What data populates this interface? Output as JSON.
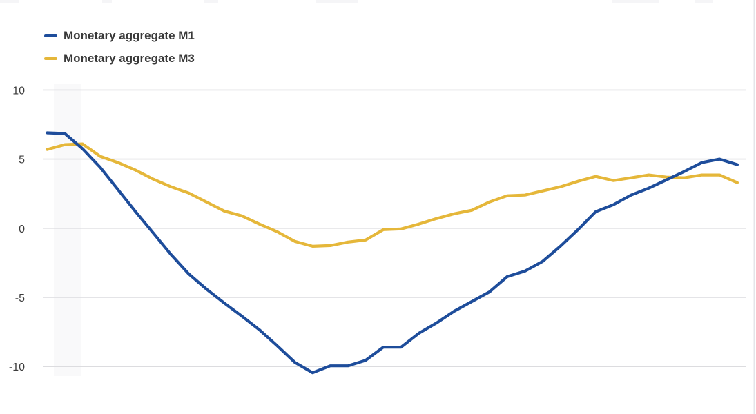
{
  "legend": {
    "items": [
      {
        "label": "Monetary aggregate M1",
        "color": "#1e4d9b"
      },
      {
        "label": "Monetary aggregate M3",
        "color": "#e5b73a"
      }
    ]
  },
  "chart_data": {
    "type": "line",
    "title": "",
    "xlabel": "",
    "ylabel": "",
    "grid": "horizontal",
    "legend_position": "top-left",
    "gridline_color": "#dcdcdf",
    "background_color": "#ffffff",
    "y_axis": {
      "ticks": [
        10,
        5,
        0,
        -5,
        -10
      ],
      "labels": [
        "10",
        "5",
        "0",
        "-5",
        "-10"
      ],
      "range": [
        -12,
        11.5
      ]
    },
    "x_axis": {
      "labels_visible": false
    },
    "series": [
      {
        "name": "Monetary aggregate M1",
        "color": "#1e4d9b",
        "values": [
          6.9,
          6.85,
          5.75,
          4.4,
          2.8,
          1.2,
          -0.35,
          -1.9,
          -3.3,
          -4.4,
          -5.4,
          -6.35,
          -7.35,
          -8.5,
          -9.7,
          -10.45,
          -9.95,
          -9.95,
          -9.55,
          -8.6,
          -8.6,
          -7.6,
          -6.85,
          -6.0,
          -5.3,
          -4.6,
          -3.5,
          -3.1,
          -2.4,
          -1.3,
          -0.1,
          1.2,
          1.7,
          2.4,
          2.9,
          3.5,
          4.1,
          4.75,
          5.0,
          4.6
        ]
      },
      {
        "name": "Monetary aggregate M3",
        "color": "#e5b73a",
        "values": [
          5.7,
          6.05,
          6.1,
          5.2,
          4.75,
          4.2,
          3.55,
          3.0,
          2.55,
          1.9,
          1.25,
          0.9,
          0.3,
          -0.25,
          -0.95,
          -1.3,
          -1.25,
          -1.0,
          -0.85,
          -0.1,
          -0.05,
          0.3,
          0.7,
          1.05,
          1.3,
          1.9,
          2.35,
          2.4,
          2.7,
          3.0,
          3.4,
          3.75,
          3.45,
          3.65,
          3.85,
          3.7,
          3.65,
          3.85,
          3.85,
          3.3
        ]
      }
    ]
  }
}
